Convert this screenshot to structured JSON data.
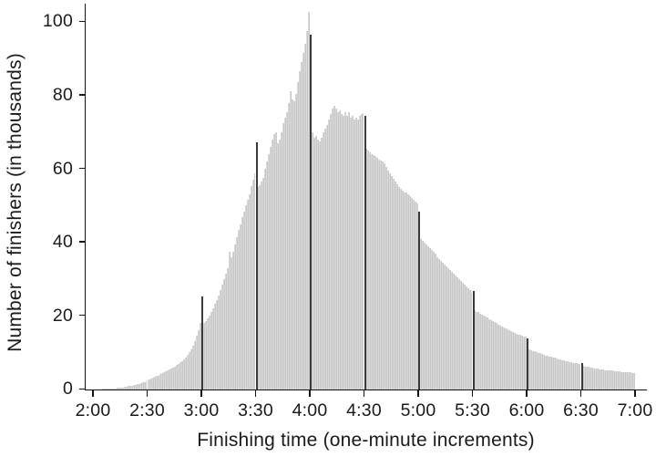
{
  "chart_data": {
    "type": "bar",
    "title": "",
    "xlabel": "Finishing time (one-minute increments)",
    "ylabel": "Number of finishers (in thousands)",
    "x_tick_labels": [
      "2:00",
      "2:30",
      "3:00",
      "3:30",
      "4:00",
      "4:30",
      "5:00",
      "5:30",
      "6:00",
      "6:30",
      "7:00"
    ],
    "y_ticks": [
      0,
      20,
      40,
      60,
      80,
      100
    ],
    "ylim": [
      0,
      104
    ],
    "x_range": [
      "2:00",
      "7:00"
    ],
    "bin_minutes": 1,
    "grid": false,
    "legend": "none",
    "units": "thousands of finishers per one-minute bin",
    "highlighted_minutes": [
      "3:00",
      "3:30",
      "4:00",
      "4:30",
      "5:00",
      "5:30",
      "6:00",
      "6:30"
    ],
    "spike_indices": [
      60,
      90,
      120,
      150,
      180,
      210,
      240,
      270
    ],
    "values": [
      0.1,
      0.1,
      0.1,
      0.1,
      0.1,
      0.15,
      0.15,
      0.2,
      0.2,
      0.25,
      0.3,
      0.3,
      0.35,
      0.4,
      0.45,
      0.5,
      0.6,
      0.7,
      0.8,
      0.9,
      1.0,
      1.1,
      1.2,
      1.3,
      1.4,
      1.5,
      1.7,
      1.9,
      2.1,
      2.35,
      2.6,
      2.8,
      3.0,
      3.2,
      3.4,
      3.6,
      3.8,
      4.1,
      4.35,
      4.6,
      4.9,
      5.1,
      5.4,
      5.7,
      6.0,
      6.3,
      6.7,
      7.0,
      7.4,
      7.8,
      8.2,
      8.7,
      9.4,
      10.2,
      11.0,
      12.0,
      13.2,
      14.6,
      16.2,
      18.0,
      25.2,
      18.0,
      18.6,
      19.3,
      20.2,
      21.2,
      22.2,
      23.2,
      24.3,
      25.5,
      27.0,
      28.5,
      30.0,
      31.5,
      33.0,
      37.5,
      36.0,
      37.5,
      39.5,
      41.5,
      43.5,
      45.0,
      46.8,
      48.3,
      50.0,
      51.5,
      53.0,
      55.3,
      57.0,
      58.7,
      67.3,
      55.0,
      55.5,
      56.5,
      57.5,
      60.0,
      62.0,
      64.0,
      66.0,
      68.0,
      69.5,
      70.0,
      67.0,
      68.0,
      70.0,
      72.5,
      74.0,
      75.5,
      78.0,
      81.0,
      79.0,
      78.5,
      80.5,
      83.5,
      86.5,
      89.0,
      91.5,
      94.0,
      97.5,
      102.6,
      96.5,
      70.0,
      68.5,
      69.0,
      68.0,
      67.5,
      68.5,
      70.0,
      71.0,
      72.0,
      73.5,
      75.0,
      76.5,
      77.2,
      76.5,
      75.5,
      76.0,
      75.0,
      74.5,
      75.5,
      74.5,
      75.5,
      74.0,
      74.5,
      73.5,
      74.0,
      73.5,
      74.5,
      74.8,
      75.2,
      74.3,
      65.6,
      65.0,
      64.5,
      64.0,
      63.8,
      63.5,
      63.0,
      62.5,
      62.3,
      62.0,
      61.5,
      60.5,
      59.5,
      58.8,
      58.0,
      57.3,
      56.5,
      55.8,
      55.0,
      54.5,
      54.0,
      53.5,
      53.5,
      53.0,
      52.5,
      52.0,
      51.5,
      51.0,
      50.5,
      48.3,
      41.0,
      40.5,
      40.0,
      39.5,
      39.0,
      38.5,
      38.0,
      37.5,
      37.0,
      36.0,
      35.5,
      35.0,
      34.5,
      34.0,
      33.5,
      33.0,
      32.5,
      32.0,
      31.5,
      31.0,
      30.5,
      30.0,
      29.5,
      29.0,
      28.5,
      28.0,
      27.5,
      27.0,
      26.2,
      26.8,
      21.5,
      21.2,
      21.0,
      20.7,
      20.4,
      20.1,
      19.8,
      19.5,
      19.2,
      18.9,
      18.6,
      18.3,
      18.0,
      17.7,
      17.4,
      17.1,
      16.9,
      16.6,
      16.4,
      16.1,
      15.9,
      15.7,
      15.4,
      15.2,
      15.0,
      14.8,
      14.6,
      14.4,
      14.3,
      13.9,
      10.8,
      10.6,
      10.5,
      10.3,
      10.1,
      10.0,
      9.8,
      9.7,
      9.5,
      9.3,
      9.2,
      9.0,
      8.9,
      8.7,
      8.6,
      8.4,
      8.3,
      8.1,
      8.0,
      7.9,
      7.7,
      7.6,
      7.5,
      7.4,
      7.3,
      7.2,
      7.1,
      7.0,
      6.9,
      7.3,
      6.4,
      6.3,
      6.2,
      6.1,
      6.0,
      5.9,
      5.8,
      5.7,
      5.6,
      5.5,
      5.5,
      5.4,
      5.3,
      5.3,
      5.2,
      5.1,
      5.1,
      5.0,
      5.0,
      4.9,
      4.9,
      4.8,
      4.8,
      4.7,
      4.7,
      4.6,
      4.6,
      4.5,
      4.5
    ],
    "colors": {
      "background": "#ffffff",
      "bar_light": "#d9d9d9",
      "bar_stripe": "#c8c8c8",
      "spike": "#3a3a3a",
      "axis": "#141414",
      "text": "#1a1a1a"
    }
  }
}
